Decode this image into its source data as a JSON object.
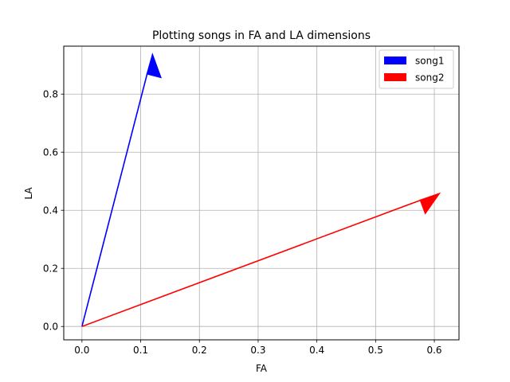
{
  "chart_data": {
    "type": "quiver",
    "title": "Plotting songs in FA and LA dimensions",
    "xlabel": "FA",
    "ylabel": "LA",
    "xlim": [
      -0.031,
      0.642
    ],
    "ylim": [
      -0.046,
      0.965
    ],
    "xticks": [
      0.0,
      0.1,
      0.2,
      0.3,
      0.4,
      0.5,
      0.6
    ],
    "xtick_labels": [
      "0.0",
      "0.1",
      "0.2",
      "0.3",
      "0.4",
      "0.5",
      "0.6"
    ],
    "yticks": [
      0.0,
      0.2,
      0.4,
      0.6,
      0.8
    ],
    "ytick_labels": [
      "0.0",
      "0.2",
      "0.4",
      "0.6",
      "0.8"
    ],
    "grid": true,
    "legend_position": "top-right",
    "series": [
      {
        "name": "song1",
        "color": "#0000ff",
        "start": [
          0,
          0
        ],
        "end": [
          0.12,
          0.94
        ]
      },
      {
        "name": "song2",
        "color": "#ff0000",
        "start": [
          0,
          0
        ],
        "end": [
          0.61,
          0.46
        ]
      }
    ]
  }
}
